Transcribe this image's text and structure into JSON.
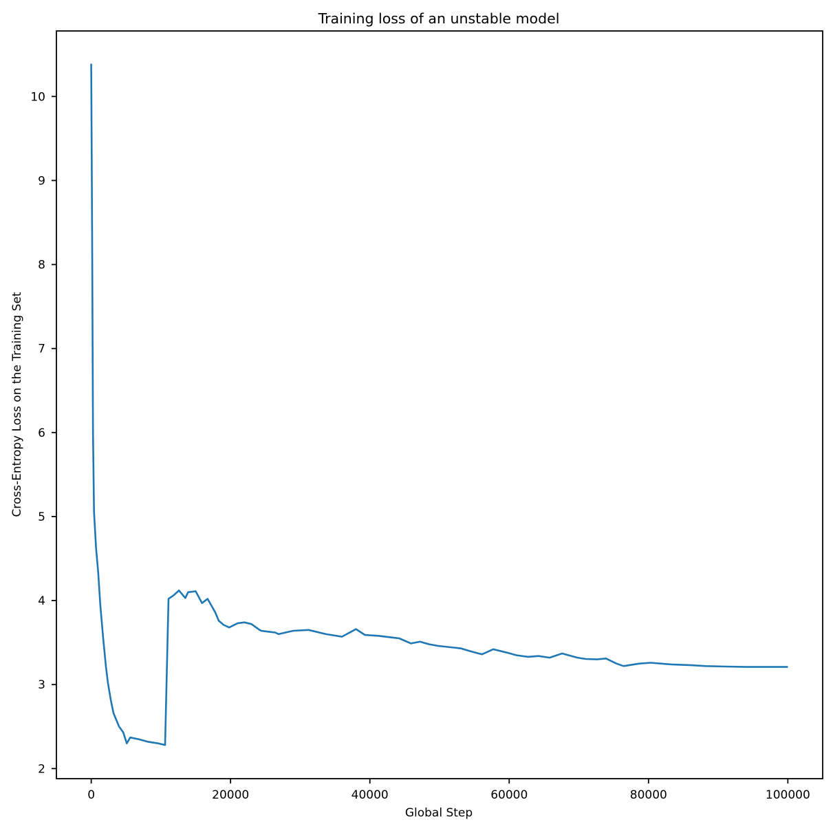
{
  "chart_data": {
    "type": "line",
    "title": "Training loss of an unstable model",
    "xlabel": "Global Step",
    "ylabel": "Cross-Entropy Loss on the Training Set",
    "grid": false,
    "legend": null,
    "xlim": [
      -5000,
      105000
    ],
    "ylim": [
      1.88,
      10.78
    ],
    "x_ticks": [
      0,
      20000,
      40000,
      60000,
      80000,
      100000
    ],
    "x_tick_labels": [
      "0",
      "20000",
      "40000",
      "60000",
      "80000",
      "100000"
    ],
    "y_ticks": [
      2,
      3,
      4,
      5,
      6,
      7,
      8,
      9,
      10
    ],
    "y_tick_labels": [
      "2",
      "3",
      "4",
      "5",
      "6",
      "7",
      "8",
      "9",
      "10"
    ],
    "line_color": "#1f77b4",
    "line_width": 2.6,
    "axis_color": "#000000",
    "text_color": "#000000",
    "series": [
      {
        "color": "#1f77b4",
        "points": [
          [
            0,
            10.39
          ],
          [
            120,
            8.4
          ],
          [
            250,
            6.0
          ],
          [
            400,
            5.05
          ],
          [
            700,
            4.62
          ],
          [
            1000,
            4.33
          ],
          [
            1300,
            3.95
          ],
          [
            1700,
            3.56
          ],
          [
            2100,
            3.22
          ],
          [
            2400,
            3.02
          ],
          [
            2800,
            2.82
          ],
          [
            3200,
            2.66
          ],
          [
            4000,
            2.5
          ],
          [
            4600,
            2.43
          ],
          [
            5100,
            2.3
          ],
          [
            5600,
            2.37
          ],
          [
            6800,
            2.35
          ],
          [
            8100,
            2.32
          ],
          [
            9600,
            2.3
          ],
          [
            10600,
            2.28
          ],
          [
            11100,
            4.02
          ],
          [
            11800,
            4.06
          ],
          [
            12600,
            4.12
          ],
          [
            13500,
            4.03
          ],
          [
            13900,
            4.1
          ],
          [
            15000,
            4.11
          ],
          [
            15900,
            3.97
          ],
          [
            16700,
            4.02
          ],
          [
            17800,
            3.86
          ],
          [
            18300,
            3.76
          ],
          [
            19000,
            3.71
          ],
          [
            19800,
            3.68
          ],
          [
            21000,
            3.73
          ],
          [
            22000,
            3.74
          ],
          [
            23000,
            3.72
          ],
          [
            24000,
            3.66
          ],
          [
            24400,
            3.64
          ],
          [
            25400,
            3.63
          ],
          [
            26400,
            3.62
          ],
          [
            26900,
            3.6
          ],
          [
            27900,
            3.62
          ],
          [
            29000,
            3.64
          ],
          [
            31200,
            3.65
          ],
          [
            33700,
            3.6
          ],
          [
            36000,
            3.57
          ],
          [
            38000,
            3.66
          ],
          [
            39300,
            3.59
          ],
          [
            41300,
            3.58
          ],
          [
            43200,
            3.56
          ],
          [
            44200,
            3.55
          ],
          [
            45900,
            3.49
          ],
          [
            47200,
            3.51
          ],
          [
            48500,
            3.48
          ],
          [
            49800,
            3.46
          ],
          [
            52100,
            3.44
          ],
          [
            53100,
            3.43
          ],
          [
            54300,
            3.4
          ],
          [
            55600,
            3.37
          ],
          [
            56100,
            3.36
          ],
          [
            57700,
            3.42
          ],
          [
            59700,
            3.38
          ],
          [
            61000,
            3.35
          ],
          [
            62700,
            3.33
          ],
          [
            64200,
            3.34
          ],
          [
            65800,
            3.32
          ],
          [
            67600,
            3.37
          ],
          [
            69800,
            3.32
          ],
          [
            71000,
            3.305
          ],
          [
            72600,
            3.3
          ],
          [
            73900,
            3.31
          ],
          [
            75400,
            3.25
          ],
          [
            76400,
            3.22
          ],
          [
            78700,
            3.25
          ],
          [
            80300,
            3.26
          ],
          [
            83300,
            3.24
          ],
          [
            86200,
            3.23
          ],
          [
            88200,
            3.22
          ],
          [
            91000,
            3.215
          ],
          [
            94000,
            3.21
          ],
          [
            97000,
            3.21
          ],
          [
            100000,
            3.21
          ]
        ]
      }
    ]
  }
}
